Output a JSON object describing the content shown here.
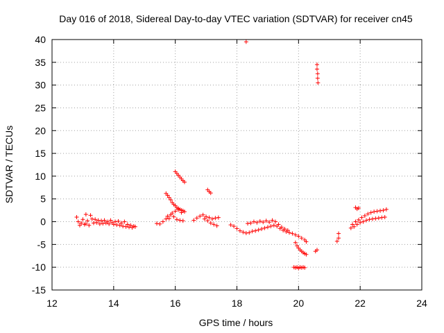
{
  "chart_data": {
    "type": "scatter",
    "title": "Day 016 of 2018, Sidereal Day-to-day VTEC variation (SDTVAR) for receiver cn45",
    "xlabel": "GPS time / hours",
    "ylabel": "SDTVAR / TECUs",
    "xlim": [
      12,
      24
    ],
    "ylim": [
      -15,
      40
    ],
    "xticks": [
      12,
      14,
      16,
      18,
      20,
      22,
      24
    ],
    "yticks": [
      -15,
      -10,
      -5,
      0,
      5,
      10,
      15,
      20,
      25,
      30,
      35,
      40
    ],
    "grid": true,
    "marker": "+",
    "color": "#ff0000",
    "series": [
      {
        "name": "cn45",
        "points": [
          [
            12.8,
            1.0
          ],
          [
            12.85,
            0.0
          ],
          [
            12.9,
            -0.8
          ],
          [
            12.95,
            -0.3
          ],
          [
            13.0,
            0.5
          ],
          [
            13.05,
            -0.6
          ],
          [
            13.1,
            1.6
          ],
          [
            13.1,
            -0.5
          ],
          [
            13.15,
            0.2
          ],
          [
            13.2,
            -0.8
          ],
          [
            13.25,
            1.4
          ],
          [
            13.3,
            0.6
          ],
          [
            13.35,
            -0.3
          ],
          [
            13.4,
            0.5
          ],
          [
            13.45,
            -0.2
          ],
          [
            13.5,
            0.3
          ],
          [
            13.55,
            -0.5
          ],
          [
            13.6,
            0.2
          ],
          [
            13.65,
            -0.4
          ],
          [
            13.7,
            0.3
          ],
          [
            13.75,
            -0.3
          ],
          [
            13.8,
            0.0
          ],
          [
            13.85,
            -0.5
          ],
          [
            13.9,
            0.3
          ],
          [
            13.95,
            -0.2
          ],
          [
            14.0,
            -0.6
          ],
          [
            14.05,
            0.0
          ],
          [
            14.1,
            -0.7
          ],
          [
            14.15,
            0.1
          ],
          [
            14.2,
            -0.8
          ],
          [
            14.25,
            -0.3
          ],
          [
            14.3,
            -1.0
          ],
          [
            14.35,
            0.0
          ],
          [
            14.4,
            -1.1
          ],
          [
            14.45,
            -0.6
          ],
          [
            14.5,
            -1.2
          ],
          [
            14.55,
            -0.8
          ],
          [
            14.6,
            -1.3
          ],
          [
            14.65,
            -1.0
          ],
          [
            14.7,
            -1.1
          ],
          [
            15.4,
            -0.4
          ],
          [
            15.5,
            -0.5
          ],
          [
            15.6,
            0.0
          ],
          [
            15.7,
            0.6
          ],
          [
            15.75,
            1.2
          ],
          [
            15.8,
            0.7
          ],
          [
            15.85,
            1.5
          ],
          [
            15.9,
            1.9
          ],
          [
            15.95,
            1.1
          ],
          [
            16.0,
            2.3
          ],
          [
            16.05,
            0.5
          ],
          [
            16.1,
            2.6
          ],
          [
            16.15,
            0.3
          ],
          [
            16.2,
            2.0
          ],
          [
            16.25,
            0.2
          ],
          [
            16.3,
            2.2
          ],
          [
            15.7,
            6.2
          ],
          [
            15.75,
            5.8
          ],
          [
            15.8,
            5.3
          ],
          [
            15.85,
            4.8
          ],
          [
            15.9,
            4.2
          ],
          [
            15.95,
            3.8
          ],
          [
            16.0,
            3.5
          ],
          [
            16.05,
            3.1
          ],
          [
            16.1,
            2.9
          ],
          [
            16.15,
            2.7
          ],
          [
            16.2,
            2.5
          ],
          [
            16.25,
            2.4
          ],
          [
            16.0,
            11.0
          ],
          [
            16.05,
            10.6
          ],
          [
            16.1,
            10.2
          ],
          [
            16.15,
            9.8
          ],
          [
            16.2,
            9.4
          ],
          [
            16.25,
            9.0
          ],
          [
            16.3,
            8.7
          ],
          [
            17.05,
            7.0
          ],
          [
            17.1,
            6.6
          ],
          [
            17.15,
            6.3
          ],
          [
            16.6,
            0.3
          ],
          [
            16.7,
            0.8
          ],
          [
            16.8,
            1.2
          ],
          [
            16.9,
            1.5
          ],
          [
            16.95,
            0.6
          ],
          [
            17.0,
            1.1
          ],
          [
            17.05,
            0.2
          ],
          [
            17.1,
            0.9
          ],
          [
            17.15,
            -0.3
          ],
          [
            17.2,
            0.6
          ],
          [
            17.25,
            -0.6
          ],
          [
            17.3,
            0.8
          ],
          [
            17.35,
            -0.9
          ],
          [
            17.4,
            0.9
          ],
          [
            17.8,
            -0.7
          ],
          [
            17.9,
            -1.0
          ],
          [
            18.0,
            -1.5
          ],
          [
            18.1,
            -2.0
          ],
          [
            18.2,
            -2.3
          ],
          [
            18.3,
            -2.5
          ],
          [
            18.35,
            -0.4
          ],
          [
            18.4,
            -2.4
          ],
          [
            18.45,
            -0.3
          ],
          [
            18.5,
            -2.1
          ],
          [
            18.55,
            0.0
          ],
          [
            18.6,
            -2.0
          ],
          [
            18.65,
            -0.2
          ],
          [
            18.7,
            -1.8
          ],
          [
            18.75,
            0.1
          ],
          [
            18.8,
            -1.6
          ],
          [
            18.85,
            -0.1
          ],
          [
            18.9,
            -1.4
          ],
          [
            18.95,
            0.2
          ],
          [
            19.0,
            -1.2
          ],
          [
            19.05,
            -0.1
          ],
          [
            19.1,
            -1.0
          ],
          [
            19.15,
            0.3
          ],
          [
            19.2,
            -0.8
          ],
          [
            19.25,
            0.0
          ],
          [
            19.3,
            -1.0
          ],
          [
            19.35,
            -0.6
          ],
          [
            19.4,
            -1.5
          ],
          [
            19.45,
            -1.2
          ],
          [
            19.5,
            -1.9
          ],
          [
            19.55,
            -1.6
          ],
          [
            19.6,
            -2.2
          ],
          [
            19.65,
            -1.9
          ],
          [
            19.7,
            -2.4
          ],
          [
            19.8,
            -2.6
          ],
          [
            19.9,
            -2.9
          ],
          [
            20.0,
            -3.2
          ],
          [
            20.1,
            -3.6
          ],
          [
            20.2,
            -4.0
          ],
          [
            20.25,
            -4.4
          ],
          [
            19.9,
            -4.6
          ],
          [
            19.95,
            -5.3
          ],
          [
            20.0,
            -5.8
          ],
          [
            20.05,
            -6.2
          ],
          [
            20.1,
            -6.5
          ],
          [
            20.15,
            -6.8
          ],
          [
            20.2,
            -7.0
          ],
          [
            20.25,
            -7.2
          ],
          [
            19.85,
            -10.0
          ],
          [
            19.9,
            -10.1
          ],
          [
            19.95,
            -10.0
          ],
          [
            20.0,
            -10.2
          ],
          [
            20.05,
            -10.0
          ],
          [
            20.1,
            -10.1
          ],
          [
            20.15,
            -10.0
          ],
          [
            20.2,
            -10.1
          ],
          [
            20.55,
            -6.5
          ],
          [
            20.6,
            -6.2
          ],
          [
            21.25,
            -4.3
          ],
          [
            21.3,
            -3.6
          ],
          [
            21.3,
            -2.6
          ],
          [
            21.7,
            -1.4
          ],
          [
            21.75,
            -0.6
          ],
          [
            21.8,
            -1.1
          ],
          [
            21.85,
            0.0
          ],
          [
            21.9,
            -0.6
          ],
          [
            21.95,
            0.4
          ],
          [
            22.0,
            -0.2
          ],
          [
            22.05,
            0.9
          ],
          [
            22.1,
            0.0
          ],
          [
            22.15,
            1.3
          ],
          [
            22.2,
            0.3
          ],
          [
            22.25,
            1.7
          ],
          [
            22.3,
            0.5
          ],
          [
            22.35,
            2.0
          ],
          [
            22.4,
            0.6
          ],
          [
            22.45,
            2.2
          ],
          [
            22.5,
            0.7
          ],
          [
            22.55,
            2.3
          ],
          [
            22.6,
            0.8
          ],
          [
            22.65,
            2.4
          ],
          [
            22.7,
            0.9
          ],
          [
            22.75,
            2.5
          ],
          [
            22.8,
            1.0
          ],
          [
            22.85,
            2.7
          ],
          [
            21.85,
            3.1
          ],
          [
            21.9,
            2.8
          ],
          [
            21.95,
            3.0
          ],
          [
            18.3,
            39.5
          ],
          [
            20.6,
            34.5
          ],
          [
            20.6,
            33.5
          ],
          [
            20.62,
            32.5
          ],
          [
            20.62,
            31.5
          ],
          [
            20.63,
            30.5
          ]
        ]
      }
    ]
  }
}
